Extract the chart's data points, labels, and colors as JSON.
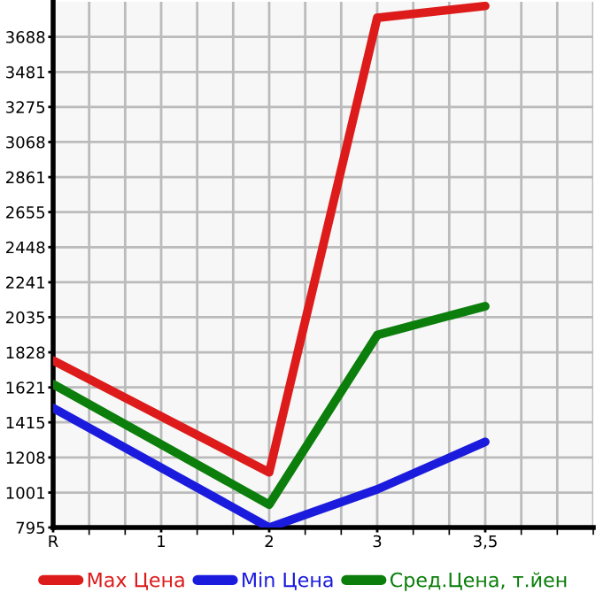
{
  "chart_data": {
    "type": "line",
    "categories": [
      "R",
      "1",
      "2",
      "3",
      "3,5"
    ],
    "series": [
      {
        "name": "Max Цена",
        "color": "#dd1b1b",
        "values": [
          1780,
          null,
          1120,
          3800,
          3870
        ]
      },
      {
        "name": "Min Цена",
        "color": "#1b1bdd",
        "values": [
          1500,
          null,
          795,
          1020,
          1300
        ]
      },
      {
        "name": "Сред.Цена, т.йен",
        "color": "#0b7e0b",
        "values": [
          1640,
          null,
          930,
          1930,
          2100
        ]
      }
    ],
    "ylim": [
      795,
      3895
    ],
    "yticks": [
      795,
      1001,
      1208,
      1415,
      1621,
      1828,
      2035,
      2241,
      2448,
      2655,
      2861,
      3068,
      3275,
      3481,
      3688
    ],
    "grid": true,
    "legend": "bottom",
    "marker": "none",
    "line_style": "solid"
  }
}
